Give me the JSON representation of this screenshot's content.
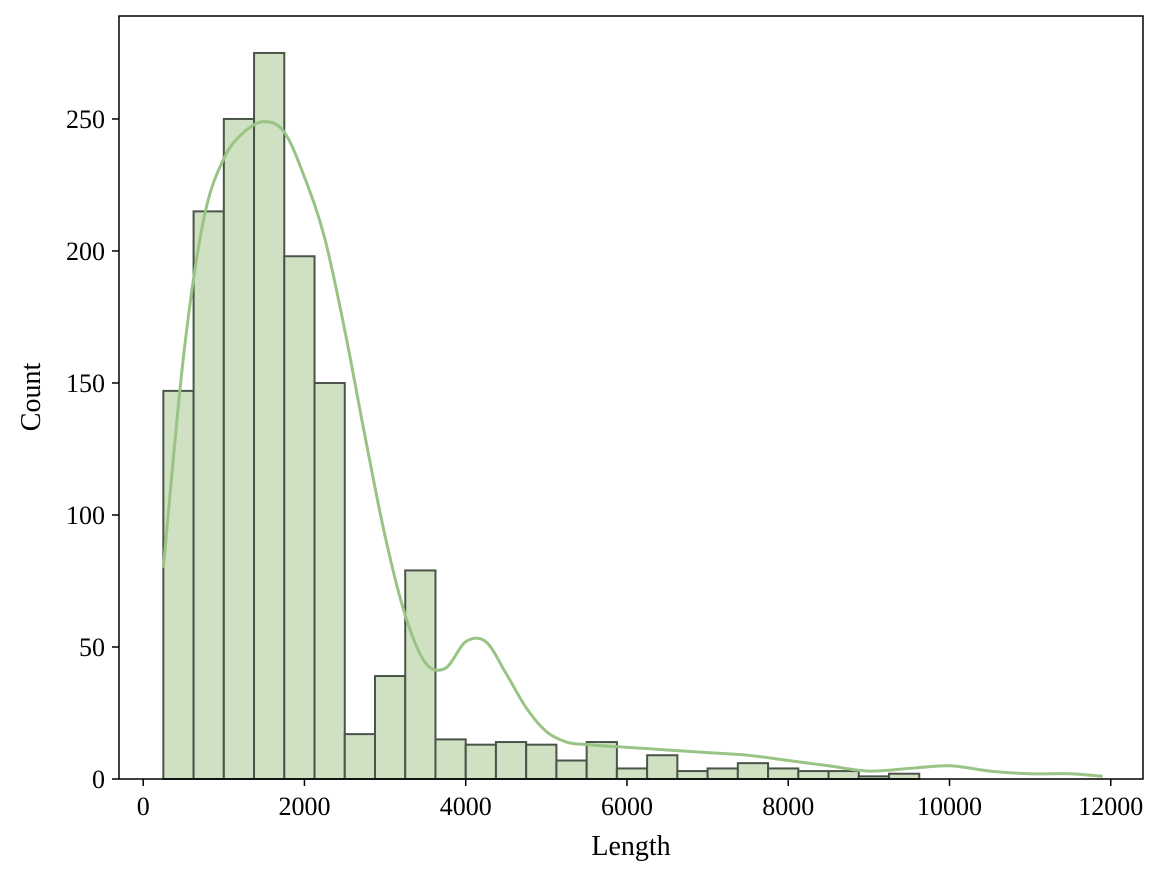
{
  "chart_data": {
    "type": "bar",
    "subtype": "histogram-with-kde",
    "title": "",
    "xlabel": "Length",
    "ylabel": "Count",
    "xlim": [
      -300,
      12400
    ],
    "ylim": [
      0,
      289
    ],
    "xticks": [
      0,
      2000,
      4000,
      6000,
      8000,
      10000,
      12000
    ],
    "yticks": [
      0,
      50,
      100,
      150,
      200,
      250
    ],
    "bin_start": 250,
    "bin_width": 375,
    "counts": [
      147,
      215,
      250,
      275,
      198,
      150,
      17,
      39,
      79,
      15,
      13,
      14,
      13,
      7,
      14,
      4,
      9,
      3,
      4,
      6,
      4,
      3,
      3,
      1,
      2
    ],
    "kde_curve": {
      "x": [
        250,
        500,
        750,
        1000,
        1250,
        1500,
        1750,
        2000,
        2250,
        2500,
        2750,
        3000,
        3250,
        3500,
        3750,
        4000,
        4250,
        4500,
        4750,
        5000,
        5250,
        5500,
        6000,
        6500,
        7000,
        7500,
        8000,
        8500,
        9000,
        9500,
        10000,
        10500,
        11000,
        11500,
        11900
      ],
      "y": [
        80,
        160,
        212,
        235,
        245,
        249,
        245,
        228,
        205,
        170,
        130,
        92,
        62,
        44,
        42,
        52,
        52,
        40,
        27,
        18,
        14,
        13,
        12,
        11,
        10,
        9,
        7,
        5,
        3,
        4,
        5,
        3,
        2,
        2,
        1
      ]
    },
    "grid": false,
    "legend": "none",
    "colors": {
      "bar_fill": "#cfe0c3",
      "bar_edge": "#4a5448",
      "kde_line": "#9ac485",
      "frame": "#000000"
    }
  }
}
